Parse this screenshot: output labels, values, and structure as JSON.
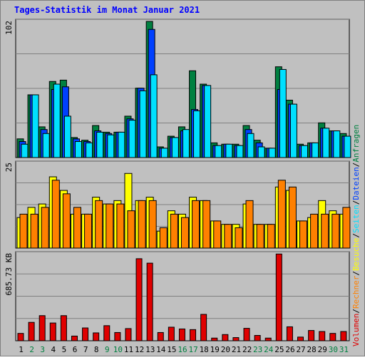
{
  "chart_data": {
    "type": "bar",
    "title": "Tages-Statistik im Monat Januar 2021",
    "days": [
      1,
      2,
      3,
      4,
      5,
      6,
      7,
      8,
      9,
      10,
      11,
      12,
      13,
      14,
      15,
      16,
      17,
      18,
      19,
      20,
      21,
      22,
      23,
      24,
      25,
      26,
      27,
      28,
      29,
      30,
      31
    ],
    "weekend_days": [
      2,
      3,
      9,
      10,
      16,
      17,
      23,
      24,
      30,
      31
    ],
    "panels": {
      "top": {
        "max_label": "102",
        "max_value": 102,
        "series": [
          {
            "name": "Anfragen",
            "color": "#008040",
            "values": [
              14,
              47,
              23,
              57,
              58,
              15,
              13,
              24,
              19,
              19,
              31,
              52,
              102,
              8,
              16,
              23,
              65,
              55,
              11,
              10,
              10,
              24,
              13,
              7,
              68,
              43,
              10,
              11,
              26,
              20,
              18
            ]
          },
          {
            "name": "Dateien",
            "color": "#0040ff",
            "values": [
              12,
              47,
              21,
              51,
              53,
              14,
              12,
              20,
              18,
              19,
              29,
              52,
              96,
              7,
              15,
              20,
              36,
              54,
              9,
              10,
              9,
              21,
              11,
              7,
              51,
              40,
              9,
              11,
              22,
              20,
              16
            ]
          },
          {
            "name": "Seiten",
            "color": "#00e0ff",
            "values": [
              10,
              47,
              18,
              55,
              31,
              12,
              11,
              19,
              17,
              19,
              28,
              50,
              62,
              7,
              15,
              21,
              35,
              54,
              9,
              10,
              9,
              18,
              8,
              7,
              66,
              40,
              9,
              11,
              22,
              20,
              16
            ]
          }
        ]
      },
      "middle": {
        "max_label": "25",
        "max_value": 25,
        "series": [
          {
            "name": "Besuche",
            "color": "#ffff00",
            "values": [
              9,
              12,
              13,
              21,
              17,
              10,
              10,
              15,
              13,
              14,
              22,
              14,
              15,
              5,
              11,
              10,
              15,
              14,
              8,
              7,
              7,
              13,
              7,
              7,
              18,
              17,
              8,
              9,
              14,
              11,
              10
            ]
          },
          {
            "name": "Rechner",
            "color": "#ff8000",
            "values": [
              10,
              10,
              12,
              20,
              16,
              12,
              10,
              14,
              13,
              13,
              11,
              14,
              14,
              6,
              10,
              9,
              14,
              14,
              8,
              7,
              6,
              14,
              7,
              7,
              20,
              18,
              8,
              10,
              10,
              10,
              12
            ]
          }
        ]
      },
      "bottom": {
        "max_label": "685.73 KB",
        "max_value": 685.73,
        "series": [
          {
            "name": "Volumen",
            "color": "#e00000",
            "values": [
              58,
              145,
              198,
              140,
              198,
              37,
              101,
              62,
              119,
              65,
              96,
              647,
              612,
              65,
              107,
              93,
              88,
              208,
              21,
              49,
              25,
              98,
              42,
              21,
              684,
              110,
              29,
              81,
              73,
              58,
              73
            ]
          }
        ]
      }
    },
    "legend": [
      "Volumen",
      "Rechner",
      "Besuche",
      "Seiten",
      "Dateien",
      "Anfragen"
    ],
    "legend_placement": "right-vertical",
    "grid": true
  }
}
